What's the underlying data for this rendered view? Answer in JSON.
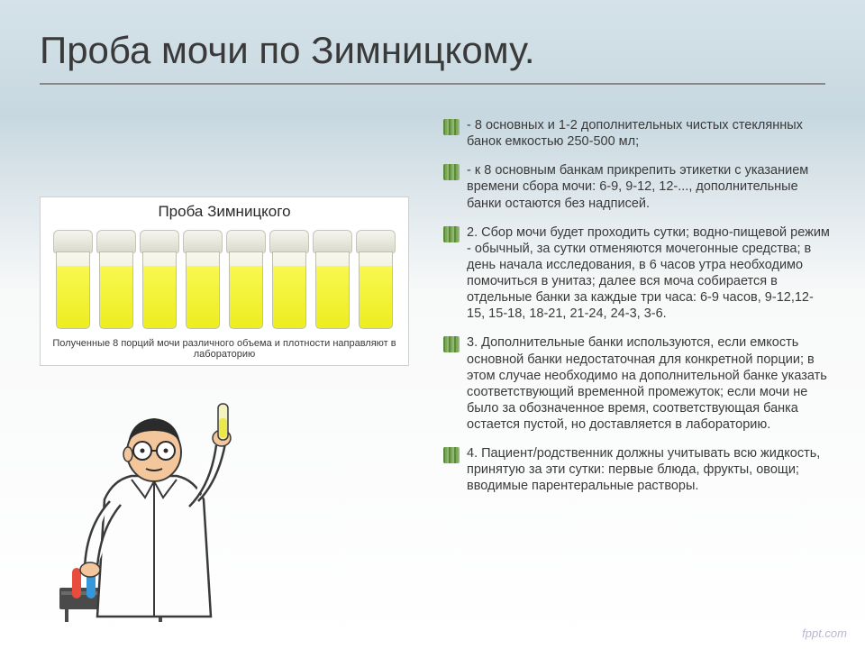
{
  "title": "Проба мочи по Зимницкому.",
  "diagram": {
    "title": "Проба Зимницкого",
    "caption": "Полученные 8 порций мочи различного объема и плотности направляют в лабораторию",
    "cup_count": 8,
    "lid_color": "#e8e8dc",
    "urine_color": "#f2f230",
    "border_color": "#c0c0b0"
  },
  "list": [
    {
      "text": " - 8 основных и 1-2 дополнительных чистых стеклянных банок емкостью 250-500 мл;"
    },
    {
      "text": " - к 8 основным банкам прикрепить этикетки с указанием времени сбора мочи: 6-9, 9-12, 12-..., дополнительные банки остаются без надписей."
    },
    {
      "text": "2. Сбор мочи будет проходить сутки; водно-пищевой режим - обычный, за сутки отменяются мочегонные средства; в день начала исследования, в 6 часов утра необходимо помочиться в унитаз; далее вся моча собирается в отдельные банки за каждые три часа: 6-9 часов, 9-12,12-15, 15-18, 18-21, 21-24, 24-3, 3-6."
    },
    {
      "text": "3. Дополнительные банки используются, если емкость основной банки недостаточная для конкретной порции; в этом случае необходимо на дополнительной банке указать соответствующий временной промежуток; если мочи не было за обозначенное время, соответствующая банка остается пустой, но доставляется в лабораторию."
    },
    {
      "text": "4. Пациент/родственник должны учитывать всю жидкость, принятую за эти сутки: первые блюда, фрукты, овощи; вводимые парентеральные растворы."
    }
  ],
  "bullet_color_a": "#5a8a3a",
  "bullet_color_b": "#8fb86e",
  "watermark": "fppt.com",
  "colors": {
    "bg_top": "#d5e2e9",
    "bg_bottom": "#ffffff",
    "text": "#3a3a3a",
    "underline": "#888888"
  }
}
